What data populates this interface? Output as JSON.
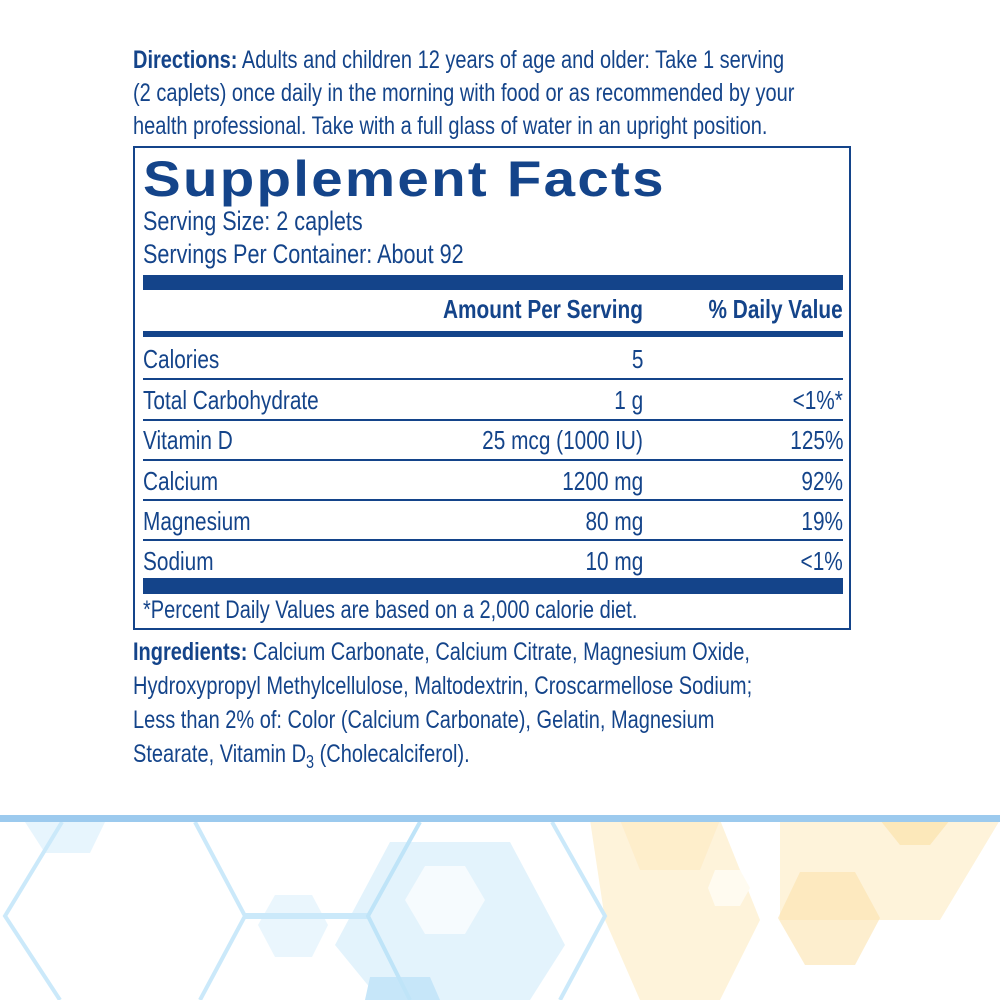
{
  "directions": {
    "label": "Directions:",
    "lines": [
      " Adults and children 12 years of age and older: Take 1 serving",
      "(2 caplets) once daily in the morning with food or as recommended by your",
      "health professional. Take with a full glass of water in an upright position."
    ]
  },
  "facts": {
    "title": "Supplement Facts",
    "serving_size": "Serving Size: 2 caplets",
    "servings_per_container": "Servings Per Container: About 92",
    "header_amount": "Amount Per Serving",
    "header_dv": "% Daily Value",
    "rows": [
      {
        "name": "Calories",
        "amount": "5",
        "dv": ""
      },
      {
        "name": "Total Carbohydrate",
        "amount": "1 g",
        "dv": "<1%*"
      },
      {
        "name": "Vitamin D",
        "amount": "25 mcg (1000 IU)",
        "dv": "125%"
      },
      {
        "name": "Calcium",
        "amount": "1200 mg",
        "dv": "92%"
      },
      {
        "name": "Magnesium",
        "amount": "80 mg",
        "dv": "19%"
      },
      {
        "name": "Sodium",
        "amount": "10 mg",
        "dv": "<1%"
      }
    ],
    "footnote": "*Percent Daily Values are based on a 2,000 calorie diet."
  },
  "ingredients": {
    "label": "Ingredients:",
    "lines": [
      " Calcium Carbonate, Calcium Citrate, Magnesium Oxide,",
      "Hydroxypropyl Methylcellulose, Maltodextrin, Croscarmellose Sodium;",
      "Less than 2% of: Color (Calcium Carbonate), Gelatin, Magnesium"
    ],
    "last_line_pre": "Stearate, Vitamin D",
    "last_line_sub": "3",
    "last_line_post": " (Cholecalciferol)."
  },
  "colors": {
    "text": "#14448a",
    "band": "#9ccaee",
    "hex_blue": "#d8eefb",
    "hex_yellow": "#fef2d6"
  }
}
